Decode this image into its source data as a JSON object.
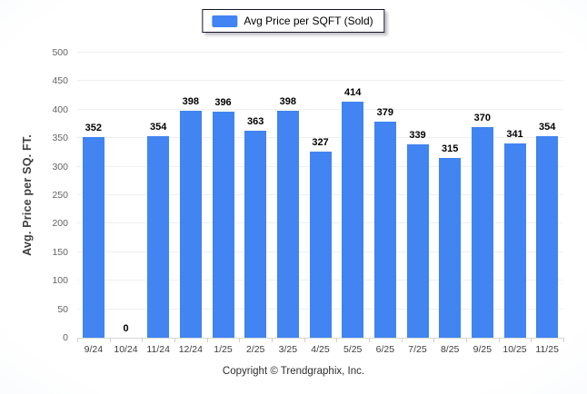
{
  "legend": {
    "label": "Avg Price per SQFT (Sold)"
  },
  "chart_data": {
    "type": "bar",
    "categories": [
      "9/24",
      "10/24",
      "11/24",
      "12/24",
      "1/25",
      "2/25",
      "3/25",
      "4/25",
      "5/25",
      "6/25",
      "7/25",
      "8/25",
      "9/25",
      "10/25",
      "11/25"
    ],
    "values": [
      352,
      0,
      354,
      398,
      396,
      363,
      398,
      327,
      414,
      379,
      339,
      315,
      370,
      341,
      354
    ],
    "title": "",
    "xlabel": "",
    "ylabel": "Avg. Price per SQ. FT.",
    "ylim": [
      0,
      500
    ],
    "ytick_step": 50,
    "grid": true,
    "legend_position": "top-center",
    "bar_color": "#4184f2",
    "value_labels": true
  },
  "footer": {
    "copyright": "Copyright © Trendgraphix, Inc."
  }
}
